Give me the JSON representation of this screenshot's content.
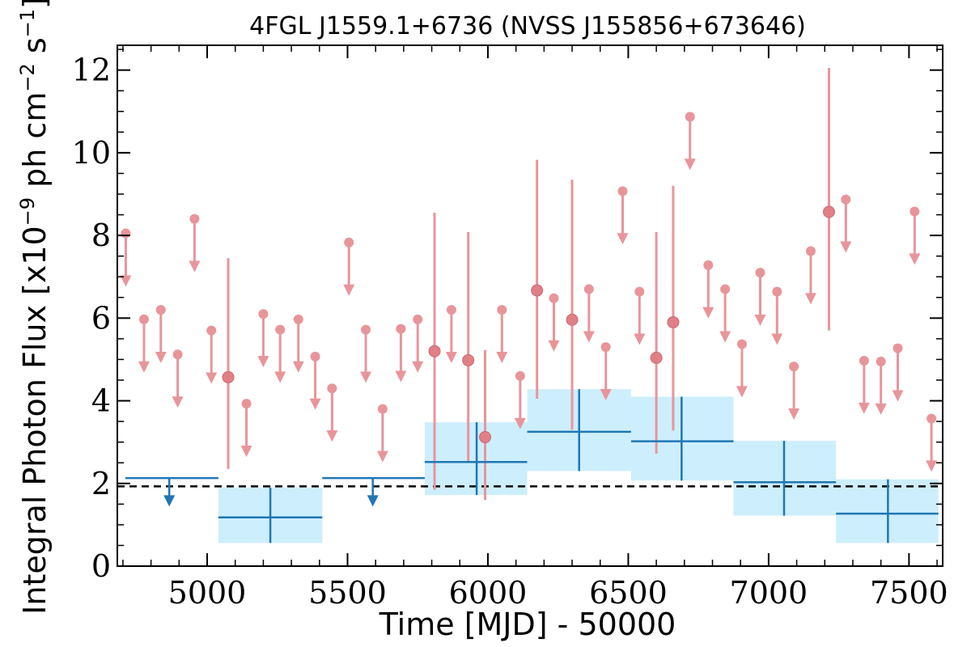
{
  "chart_data": {
    "type": "scatter",
    "title": "4FGL J1559.1+6736 (NVSS J155856+673646)",
    "xlabel": "Time [MJD] - 50000",
    "ylabel_prefix": "Integral Photon Flux [x10",
    "ylabel_exp1": "−9",
    "ylabel_mid": " ph cm",
    "ylabel_exp2": "−2",
    "ylabel_mid2": " s",
    "ylabel_exp3": "−1",
    "ylabel_suffix": "]",
    "xlim": [
      4680,
      7620
    ],
    "ylim": [
      0,
      12.6
    ],
    "xticks": [
      5000,
      5500,
      6000,
      6500,
      7000,
      7500
    ],
    "xtick_labels": [
      "5000",
      "5500",
      "6000",
      "6500",
      "7000",
      "7500"
    ],
    "yticks": [
      0,
      2,
      4,
      6,
      8,
      10,
      12
    ],
    "ytick_labels": [
      "0",
      "2",
      "4",
      "6",
      "8",
      "10",
      "12"
    ],
    "reference_level": 1.93,
    "colors": {
      "short_bins": "#e8959a",
      "long_bins": "#1f77b4",
      "error_band": "#cdeefc",
      "reference": "#000000"
    },
    "short_bin_upper_limits": [
      {
        "x": 4710,
        "y": 8.05
      },
      {
        "x": 4775,
        "y": 5.97
      },
      {
        "x": 4835,
        "y": 6.2
      },
      {
        "x": 4895,
        "y": 5.12
      },
      {
        "x": 4955,
        "y": 8.4
      },
      {
        "x": 5015,
        "y": 5.7
      },
      {
        "x": 5140,
        "y": 3.93
      },
      {
        "x": 5200,
        "y": 6.1
      },
      {
        "x": 5260,
        "y": 5.72
      },
      {
        "x": 5325,
        "y": 5.97
      },
      {
        "x": 5385,
        "y": 5.07
      },
      {
        "x": 5445,
        "y": 4.3
      },
      {
        "x": 5505,
        "y": 7.83
      },
      {
        "x": 5565,
        "y": 5.72
      },
      {
        "x": 5625,
        "y": 3.8
      },
      {
        "x": 5690,
        "y": 5.74
      },
      {
        "x": 5750,
        "y": 5.97
      },
      {
        "x": 5870,
        "y": 6.2
      },
      {
        "x": 6050,
        "y": 6.2
      },
      {
        "x": 6115,
        "y": 4.6
      },
      {
        "x": 6235,
        "y": 6.48
      },
      {
        "x": 6360,
        "y": 6.7
      },
      {
        "x": 6420,
        "y": 5.3
      },
      {
        "x": 6480,
        "y": 9.07
      },
      {
        "x": 6540,
        "y": 6.64
      },
      {
        "x": 6720,
        "y": 10.87
      },
      {
        "x": 6785,
        "y": 7.28
      },
      {
        "x": 6845,
        "y": 6.7
      },
      {
        "x": 6905,
        "y": 5.37
      },
      {
        "x": 6970,
        "y": 7.1
      },
      {
        "x": 7030,
        "y": 6.64
      },
      {
        "x": 7090,
        "y": 4.83
      },
      {
        "x": 7150,
        "y": 7.62
      },
      {
        "x": 7275,
        "y": 8.87
      },
      {
        "x": 7340,
        "y": 4.97
      },
      {
        "x": 7400,
        "y": 4.95
      },
      {
        "x": 7460,
        "y": 5.27
      },
      {
        "x": 7520,
        "y": 8.58
      },
      {
        "x": 7580,
        "y": 3.57
      }
    ],
    "short_bin_detections": [
      {
        "x": 5075,
        "y": 4.57,
        "ylow": 2.35,
        "yhigh": 7.45
      },
      {
        "x": 5810,
        "y": 5.2,
        "ylow": 1.85,
        "yhigh": 8.55
      },
      {
        "x": 5930,
        "y": 4.98,
        "ylow": 2.5,
        "yhigh": 8.08
      },
      {
        "x": 5990,
        "y": 3.12,
        "ylow": 1.6,
        "yhigh": 5.23
      },
      {
        "x": 6175,
        "y": 6.67,
        "ylow": 4.05,
        "yhigh": 9.83
      },
      {
        "x": 6300,
        "y": 5.96,
        "ylow": 3.3,
        "yhigh": 9.35
      },
      {
        "x": 6600,
        "y": 5.04,
        "ylow": 2.72,
        "yhigh": 8.08
      },
      {
        "x": 6660,
        "y": 5.9,
        "ylow": 3.28,
        "yhigh": 9.2
      },
      {
        "x": 7215,
        "y": 8.57,
        "ylow": 5.7,
        "yhigh": 12.05
      }
    ],
    "long_bin_upper_limits": [
      {
        "x": 4865,
        "xlow": 4680,
        "xhigh": 5040,
        "y": 2.13
      },
      {
        "x": 5590,
        "xlow": 5410,
        "xhigh": 5775,
        "y": 2.13
      }
    ],
    "long_bin_detections": [
      {
        "x": 5225,
        "xlow": 5040,
        "xhigh": 5410,
        "y": 1.18,
        "ylow": 0.56,
        "yhigh": 1.9
      },
      {
        "x": 5960,
        "xlow": 5775,
        "xhigh": 6140,
        "y": 2.52,
        "ylow": 1.72,
        "yhigh": 3.48
      },
      {
        "x": 6325,
        "xlow": 6140,
        "xhigh": 6510,
        "y": 3.25,
        "ylow": 2.3,
        "yhigh": 4.28
      },
      {
        "x": 6690,
        "xlow": 6510,
        "xhigh": 6875,
        "y": 3.02,
        "ylow": 2.07,
        "yhigh": 4.1
      },
      {
        "x": 7055,
        "xlow": 6875,
        "xhigh": 7240,
        "y": 2.03,
        "ylow": 1.22,
        "yhigh": 3.03
      },
      {
        "x": 7425,
        "xlow": 7240,
        "xhigh": 7605,
        "y": 1.27,
        "ylow": 0.56,
        "yhigh": 2.1
      }
    ]
  }
}
